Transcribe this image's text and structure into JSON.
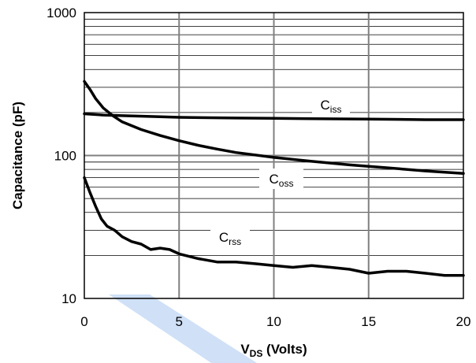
{
  "chart_data": {
    "type": "line",
    "title": "",
    "xlabel": {
      "main": "V",
      "sub": "DS",
      "rest": " (Volts)"
    },
    "ylabel": "Capacitance (pF)",
    "xlim": [
      0,
      20
    ],
    "ylim": [
      10,
      1000
    ],
    "yscale": "log",
    "grid": true,
    "x_ticks": [
      "0",
      "5",
      "10",
      "15",
      "20"
    ],
    "y_ticks": [
      "10",
      "100",
      "1000"
    ],
    "colors": {
      "series": "#000000",
      "grid_major": "#808080",
      "grid_minor": "#000000",
      "watermark": "#cfe0f7"
    },
    "series": [
      {
        "name": "Ciss",
        "label_main": "C",
        "label_sub": "iss",
        "x": [
          0,
          1,
          2,
          4,
          5,
          8,
          10,
          12,
          15,
          18,
          20
        ],
        "values": [
          196,
          192,
          190,
          187,
          185,
          183,
          182,
          181,
          180,
          178,
          178
        ]
      },
      {
        "name": "Coss",
        "label_main": "C",
        "label_sub": "oss",
        "x": [
          0,
          0.3,
          0.6,
          1,
          1.5,
          2,
          3,
          4,
          5,
          6,
          7,
          8,
          10,
          12,
          14,
          16,
          18,
          20
        ],
        "values": [
          330,
          290,
          250,
          215,
          190,
          172,
          152,
          138,
          127,
          118,
          111,
          105,
          97,
          91,
          86,
          82,
          78,
          75
        ]
      },
      {
        "name": "Crss",
        "label_main": "C",
        "label_sub": "rss",
        "x": [
          0,
          0.3,
          0.6,
          0.9,
          1.2,
          1.6,
          2,
          2.5,
          3,
          3.5,
          4,
          4.5,
          5,
          6,
          7,
          8,
          9,
          10,
          11,
          12,
          13,
          14,
          15,
          16,
          17,
          18,
          19,
          20
        ],
        "values": [
          70,
          55,
          44,
          36,
          32,
          30,
          27,
          25,
          24,
          22,
          22.5,
          22,
          20.5,
          19,
          18,
          18,
          17.5,
          17,
          16.5,
          17,
          16.5,
          16,
          15,
          15.5,
          15.5,
          15,
          14.5,
          14.5
        ]
      }
    ]
  }
}
